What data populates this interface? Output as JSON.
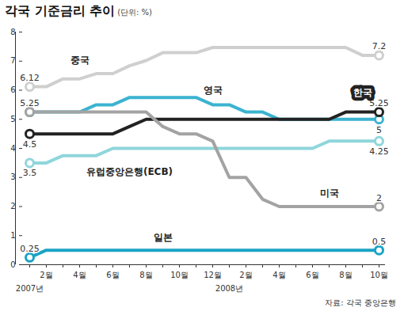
{
  "chart_data": {
    "type": "line",
    "title": "각국 기준금리 추이",
    "subtitle": "(단위: %)",
    "source": "자료: 각국 중앙은행",
    "categories": [
      null,
      "2월",
      null,
      "4월",
      null,
      "6월",
      null,
      "8월",
      null,
      "10월",
      null,
      "12월",
      null,
      "2월",
      null,
      "4월",
      null,
      "6월",
      null,
      "8월",
      null,
      "10월"
    ],
    "years": [
      {
        "label": "2007년",
        "index": 0
      },
      {
        "label": "2008년",
        "index": 12
      }
    ],
    "series": [
      {
        "name": "중국",
        "color": "#cfcfcf",
        "marker": "circle",
        "values": [
          6.12,
          6.12,
          6.39,
          6.39,
          6.57,
          6.57,
          6.84,
          7.02,
          7.29,
          7.29,
          7.29,
          7.47,
          7.47,
          7.47,
          7.47,
          7.47,
          7.47,
          7.47,
          7.47,
          7.47,
          7.2,
          7.2
        ]
      },
      {
        "name": "영국",
        "color": "#3bb3d0",
        "marker": "circle",
        "values": [
          5.25,
          5.25,
          5.25,
          5.25,
          5.5,
          5.5,
          5.75,
          5.75,
          5.75,
          5.75,
          5.75,
          5.5,
          5.5,
          5.25,
          5.25,
          5.0,
          5.0,
          5.0,
          5.0,
          5.0,
          5.0,
          5.0
        ]
      },
      {
        "name": "한국",
        "color": "#222222",
        "marker": "circle",
        "values": [
          4.5,
          4.5,
          4.5,
          4.5,
          4.5,
          4.5,
          4.75,
          5.0,
          5.0,
          5.0,
          5.0,
          5.0,
          5.0,
          5.0,
          5.0,
          5.0,
          5.0,
          5.0,
          5.0,
          5.25,
          5.25,
          5.25
        ]
      },
      {
        "name": "유럽중앙은행(ECB)",
        "color": "#8fd6db",
        "marker": "circle",
        "values": [
          3.5,
          3.5,
          3.75,
          3.75,
          3.75,
          4.0,
          4.0,
          4.0,
          4.0,
          4.0,
          4.0,
          4.0,
          4.0,
          4.0,
          4.0,
          4.0,
          4.0,
          4.0,
          4.25,
          4.25,
          4.25,
          4.25
        ]
      },
      {
        "name": "미국",
        "color": "#a3a3a3",
        "marker": "circle",
        "values": [
          5.25,
          5.25,
          5.25,
          5.25,
          5.25,
          5.25,
          5.25,
          5.25,
          4.75,
          4.5,
          4.5,
          4.25,
          3.0,
          3.0,
          2.25,
          2.0,
          2.0,
          2.0,
          2.0,
          2.0,
          2.0,
          2.0
        ]
      },
      {
        "name": "일본",
        "color": "#1aa3c4",
        "marker": "circle",
        "values": [
          0.25,
          0.5,
          0.5,
          0.5,
          0.5,
          0.5,
          0.5,
          0.5,
          0.5,
          0.5,
          0.5,
          0.5,
          0.5,
          0.5,
          0.5,
          0.5,
          0.5,
          0.5,
          0.5,
          0.5,
          0.5,
          0.5
        ]
      }
    ],
    "annotations": [
      {
        "text": "6.12",
        "x": 0,
        "y": 6.12
      },
      {
        "text": "5.25",
        "x": 0,
        "y": 5.25
      },
      {
        "text": "4.5",
        "x": 0,
        "y": 4.5
      },
      {
        "text": "3.5",
        "x": 0,
        "y": 3.5
      },
      {
        "text": "0.25",
        "x": 0,
        "y": 0.25
      },
      {
        "text": "7.2",
        "x": 21,
        "y": 7.2
      },
      {
        "text": "5.25",
        "x": 21,
        "y": 5.25
      },
      {
        "text": "5",
        "x": 21,
        "y": 5
      },
      {
        "text": "4.25",
        "x": 21,
        "y": 4.25
      },
      {
        "text": "2",
        "x": 21,
        "y": 2
      },
      {
        "text": "0.5",
        "x": 21,
        "y": 0.5
      }
    ],
    "ylim": [
      0,
      8
    ],
    "yticks": [
      0,
      1,
      2,
      3,
      4,
      5,
      6,
      7,
      8
    ],
    "grid": false
  }
}
